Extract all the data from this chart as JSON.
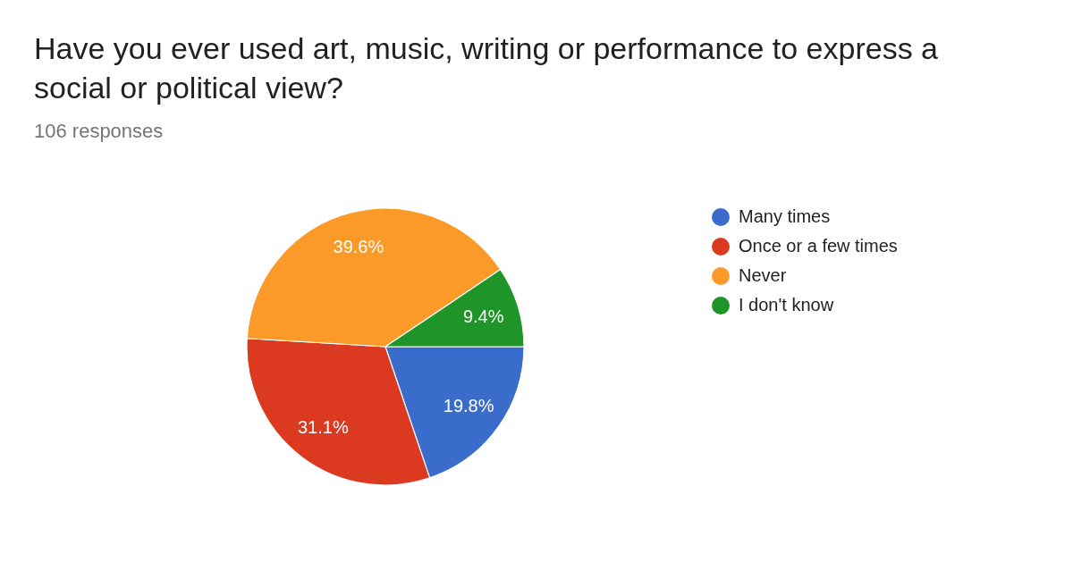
{
  "chart_data": {
    "type": "pie",
    "title": "Have you ever used art, music, writing or performance to express a social or political view?",
    "subtitle": "106 responses",
    "categories": [
      "Many times",
      "Once or a few times",
      "Never",
      "I don't know"
    ],
    "values": [
      19.8,
      31.1,
      39.6,
      9.4
    ],
    "colors": [
      "#3a6ccb",
      "#db3a21",
      "#fb9a28",
      "#1f9428"
    ],
    "value_labels": [
      "19.8%",
      "31.1%",
      "39.6%",
      "9.4%"
    ],
    "legend": "right"
  }
}
